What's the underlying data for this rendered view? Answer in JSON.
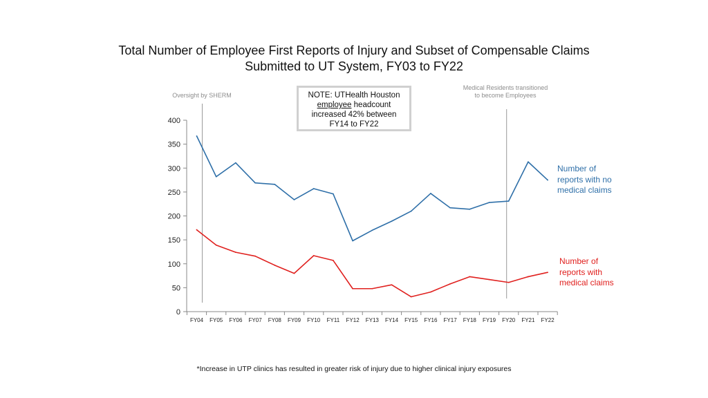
{
  "title_line1": "Total Number of Employee First Reports of Injury and Subset of Compensable Claims",
  "title_line2": "Submitted to UT System, FY03 to FY22",
  "note": {
    "line1": "NOTE: UTHealth Houston",
    "underlined": "employee",
    "line2_rest": " headcount",
    "line3": "increased 42% between",
    "line4": "FY14 to FY22"
  },
  "annotation_left": "Oversight by SHERM",
  "annotation_right_line1": "Medical Residents transitioned",
  "annotation_right_line2": "to become Employees",
  "series_label_blue": [
    "Number of",
    "reports with no",
    "medical claims"
  ],
  "series_label_red": [
    "Number of",
    "reports with",
    "medical claims"
  ],
  "footnote": "*Increase in UTP clinics has resulted in greater risk of injury due to higher clinical injury exposures",
  "colors": {
    "blue": "#2e6fa8",
    "red": "#e0201e",
    "axis": "#888888",
    "marker": "#9a9a9a"
  },
  "chart_data": {
    "type": "line",
    "categories": [
      "FY04",
      "FY05",
      "FY06",
      "FY07",
      "FY08",
      "FY09",
      "FY10",
      "FY11",
      "FY12",
      "FY13",
      "FY14",
      "FY15",
      "FY16",
      "FY17",
      "FY18",
      "FY19",
      "FY20",
      "FY21",
      "FY22"
    ],
    "series": [
      {
        "name": "Number of reports with no medical claims",
        "color": "#2e6fa8",
        "values": [
          367,
          282,
          311,
          269,
          266,
          234,
          257,
          246,
          148,
          170,
          189,
          210,
          247,
          217,
          214,
          228,
          231,
          313,
          275
        ]
      },
      {
        "name": "Number of reports with medical claims",
        "color": "#e0201e",
        "values": [
          171,
          139,
          124,
          116,
          97,
          80,
          117,
          107,
          48,
          48,
          56,
          31,
          41,
          58,
          73,
          67,
          61,
          73,
          82
        ]
      }
    ],
    "yticks": [
      0,
      50,
      100,
      150,
      200,
      250,
      300,
      350,
      400
    ],
    "ylim": [
      0,
      400
    ],
    "grid": false,
    "vertical_markers": [
      "FY04",
      "FY20"
    ]
  }
}
